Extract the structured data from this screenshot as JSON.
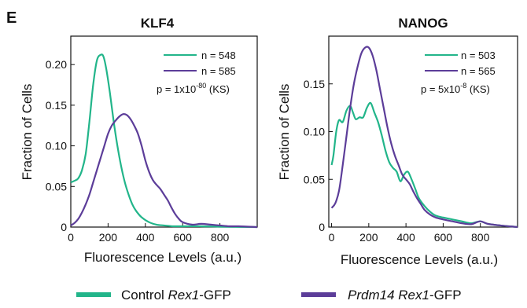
{
  "panel_label": "E",
  "colors": {
    "control": "#22b58a",
    "prdm14": "#5c3d99",
    "axis": "#111111"
  },
  "legend": {
    "items": [
      {
        "key": "control",
        "parts": [
          {
            "text": "Control ",
            "italic": false
          },
          {
            "text": "Rex1",
            "italic": true
          },
          {
            "text": "-GFP",
            "italic": false
          }
        ]
      },
      {
        "key": "prdm14",
        "parts": [
          {
            "text": "Prdm14 Rex1",
            "italic": true
          },
          {
            "text": "-GFP",
            "italic": false
          }
        ]
      }
    ]
  },
  "chart_data": [
    {
      "type": "line",
      "title": "KLF4",
      "xlabel": "Fluorescence Levels (a.u.)",
      "ylabel": "Fraction of Cells",
      "xlim": [
        0,
        1000
      ],
      "ylim": [
        0,
        0.235
      ],
      "xticks": [
        0,
        200,
        400,
        600,
        800
      ],
      "xtick_labels": [
        "0",
        "200",
        "400",
        "600",
        "800"
      ],
      "yticks": [
        0,
        0.05,
        0.1,
        0.15,
        0.2
      ],
      "ytick_labels": [
        "0",
        "0.05",
        "0.10",
        "0.15",
        "0.20"
      ],
      "grid": false,
      "legend_position": "top-right",
      "series": [
        {
          "name": "n = 548",
          "color_key": "control",
          "x": [
            0,
            20,
            40,
            60,
            80,
            100,
            120,
            140,
            160,
            175,
            190,
            210,
            230,
            250,
            270,
            290,
            310,
            330,
            350,
            380,
            420,
            460,
            500,
            550,
            600,
            700,
            800,
            1000
          ],
          "y": [
            0.055,
            0.057,
            0.06,
            0.07,
            0.09,
            0.13,
            0.175,
            0.205,
            0.212,
            0.21,
            0.195,
            0.165,
            0.13,
            0.1,
            0.075,
            0.055,
            0.04,
            0.028,
            0.02,
            0.012,
            0.006,
            0.003,
            0.002,
            0.001,
            0.001,
            0.001,
            0.0005,
            0
          ]
        },
        {
          "name": "n = 585",
          "color_key": "prdm14",
          "x": [
            0,
            20,
            40,
            60,
            80,
            100,
            120,
            140,
            160,
            180,
            200,
            220,
            240,
            260,
            280,
            300,
            320,
            340,
            360,
            380,
            400,
            420,
            440,
            460,
            480,
            500,
            520,
            540,
            560,
            580,
            600,
            650,
            700,
            750,
            800,
            850,
            900,
            1000
          ],
          "y": [
            0.002,
            0.005,
            0.01,
            0.018,
            0.028,
            0.04,
            0.055,
            0.07,
            0.085,
            0.1,
            0.115,
            0.125,
            0.131,
            0.136,
            0.139,
            0.138,
            0.133,
            0.125,
            0.115,
            0.1,
            0.082,
            0.068,
            0.058,
            0.052,
            0.047,
            0.04,
            0.033,
            0.024,
            0.016,
            0.01,
            0.006,
            0.003,
            0.004,
            0.003,
            0.002,
            0.001,
            0.001,
            0
          ]
        }
      ],
      "annotation": {
        "text": "p = 1x10",
        "sup": "-80",
        "suffix": " (KS)"
      }
    },
    {
      "type": "line",
      "title": "NANOG",
      "xlabel": "Fluorescence Levels (a.u.)",
      "ylabel": "Fraction of Cells",
      "xlim": [
        -15,
        1000
      ],
      "ylim": [
        0,
        0.2
      ],
      "xticks": [
        0,
        200,
        400,
        600,
        800
      ],
      "xtick_labels": [
        "0",
        "200",
        "400",
        "600",
        "800"
      ],
      "yticks": [
        0,
        0.05,
        0.1,
        0.15
      ],
      "ytick_labels": [
        "0",
        "0.05",
        "0.10",
        "0.15"
      ],
      "grid": false,
      "legend_position": "top-right",
      "series": [
        {
          "name": "n = 503",
          "color_key": "control",
          "x": [
            0,
            10,
            25,
            40,
            60,
            80,
            100,
            115,
            130,
            150,
            170,
            190,
            210,
            230,
            250,
            270,
            290,
            310,
            330,
            350,
            370,
            390,
            410,
            430,
            450,
            470,
            500,
            530,
            560,
            600,
            650,
            700,
            750,
            800,
            850,
            1000
          ],
          "y": [
            0.065,
            0.075,
            0.1,
            0.112,
            0.11,
            0.122,
            0.127,
            0.12,
            0.113,
            0.115,
            0.115,
            0.125,
            0.13,
            0.12,
            0.11,
            0.096,
            0.08,
            0.068,
            0.062,
            0.058,
            0.048,
            0.055,
            0.058,
            0.05,
            0.04,
            0.03,
            0.022,
            0.016,
            0.012,
            0.01,
            0.008,
            0.006,
            0.004,
            0.006,
            0.003,
            0
          ]
        },
        {
          "name": "n = 565",
          "color_key": "prdm14",
          "x": [
            0,
            20,
            40,
            60,
            80,
            100,
            120,
            140,
            160,
            180,
            200,
            220,
            240,
            260,
            280,
            300,
            320,
            340,
            360,
            380,
            400,
            420,
            440,
            460,
            480,
            500,
            530,
            560,
            600,
            650,
            700,
            750,
            800,
            850,
            1000
          ],
          "y": [
            0.02,
            0.025,
            0.038,
            0.065,
            0.095,
            0.125,
            0.15,
            0.168,
            0.182,
            0.188,
            0.188,
            0.18,
            0.165,
            0.145,
            0.125,
            0.105,
            0.088,
            0.075,
            0.065,
            0.055,
            0.05,
            0.045,
            0.037,
            0.03,
            0.024,
            0.018,
            0.013,
            0.01,
            0.008,
            0.006,
            0.004,
            0.003,
            0.006,
            0.003,
            0
          ]
        }
      ],
      "annotation": {
        "text": "p = 5x10",
        "sup": "-8",
        "suffix": " (KS)"
      }
    }
  ]
}
